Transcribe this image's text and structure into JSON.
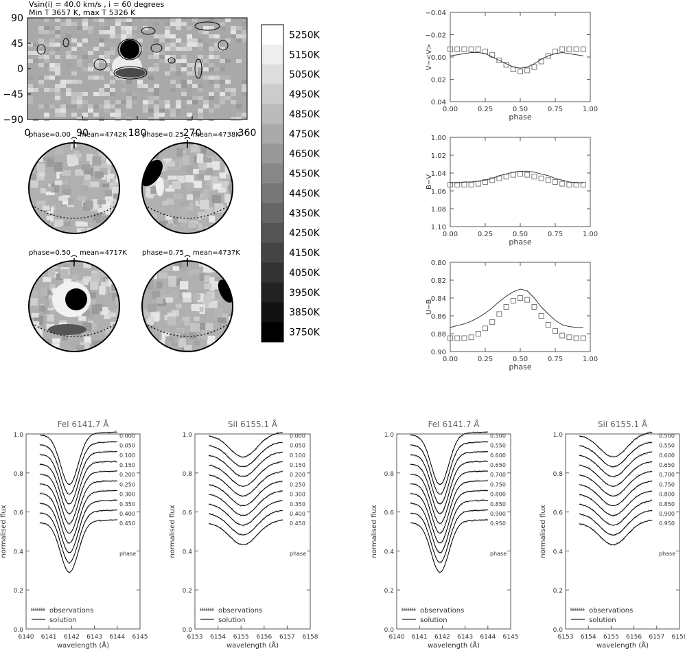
{
  "map": {
    "title_line1": "Vsin(i) = 40.0 km/s , i = 60 degrees",
    "title_line2": "Min T 3657 K, max T 5326 K",
    "y_ticks": [
      "90",
      "45",
      "0",
      "−45",
      "−90"
    ],
    "x_ticks": [
      "0",
      "90",
      "180",
      "270",
      "360"
    ]
  },
  "colorbar": {
    "labels": [
      "5250K",
      "5150K",
      "5050K",
      "4950K",
      "4850K",
      "4750K",
      "4650K",
      "4550K",
      "4450K",
      "4350K",
      "4250K",
      "4150K",
      "4050K",
      "3950K",
      "3850K",
      "3750K"
    ]
  },
  "spheres": [
    {
      "label": "phase=0.00",
      "mean": "mean=4742K"
    },
    {
      "label": "phase=0.25",
      "mean": "mean=4738K"
    },
    {
      "label": "phase=0.50",
      "mean": "mean=4717K"
    },
    {
      "label": "phase=0.75",
      "mean": "mean=4737K"
    }
  ],
  "chart_data": [
    {
      "type": "scatter",
      "ylabel": "V−<V>",
      "xlabel": "phase",
      "ylim": [
        0.04,
        -0.04
      ],
      "xlim": [
        0,
        1
      ],
      "x_ticks": [
        "0.00",
        "0.25",
        "0.50",
        "0.75",
        "1.00"
      ],
      "y_ticks": [
        "−0.04",
        "−0.02",
        "0.00",
        "0.02",
        "0.04"
      ],
      "y_tick_values": [
        -0.04,
        -0.02,
        0.0,
        0.02,
        0.04
      ],
      "observations": {
        "x": [
          0.0,
          0.05,
          0.1,
          0.15,
          0.2,
          0.25,
          0.3,
          0.35,
          0.4,
          0.45,
          0.5,
          0.55,
          0.6,
          0.65,
          0.7,
          0.75,
          0.8,
          0.85,
          0.9,
          0.95
        ],
        "y": [
          -0.007,
          -0.007,
          -0.007,
          -0.007,
          -0.007,
          -0.005,
          -0.002,
          0.003,
          0.007,
          0.011,
          0.013,
          0.012,
          0.009,
          0.004,
          -0.001,
          -0.005,
          -0.007,
          -0.007,
          -0.007,
          -0.007
        ]
      },
      "solution": {
        "x": [
          0.0,
          0.05,
          0.1,
          0.15,
          0.2,
          0.25,
          0.3,
          0.35,
          0.4,
          0.45,
          0.5,
          0.55,
          0.6,
          0.65,
          0.7,
          0.75,
          0.8,
          0.85,
          0.9,
          0.95
        ],
        "y": [
          -0.001,
          -0.002,
          -0.003,
          -0.004,
          -0.004,
          -0.003,
          0.0,
          0.003,
          0.006,
          0.009,
          0.01,
          0.009,
          0.006,
          0.002,
          -0.001,
          -0.003,
          -0.004,
          -0.003,
          -0.002,
          -0.001
        ]
      }
    },
    {
      "type": "scatter",
      "ylabel": "B−V",
      "xlabel": "phase",
      "ylim": [
        1.1,
        1.0
      ],
      "xlim": [
        0,
        1
      ],
      "x_ticks": [
        "0.00",
        "0.25",
        "0.50",
        "0.75",
        "1.00"
      ],
      "y_ticks": [
        "1.00",
        "1.02",
        "1.04",
        "1.06",
        "1.08",
        "1.10"
      ],
      "y_tick_values": [
        1.0,
        1.02,
        1.04,
        1.06,
        1.08,
        1.1
      ],
      "observations": {
        "x": [
          0.0,
          0.05,
          0.1,
          0.15,
          0.2,
          0.25,
          0.3,
          0.35,
          0.4,
          0.45,
          0.5,
          0.55,
          0.6,
          0.65,
          0.7,
          0.75,
          0.8,
          0.85,
          0.9,
          0.95
        ],
        "y": [
          1.053,
          1.053,
          1.053,
          1.053,
          1.052,
          1.05,
          1.048,
          1.046,
          1.044,
          1.042,
          1.041,
          1.042,
          1.044,
          1.046,
          1.048,
          1.05,
          1.052,
          1.053,
          1.053,
          1.053
        ]
      },
      "solution": {
        "x": [
          0.0,
          0.05,
          0.1,
          0.15,
          0.2,
          0.25,
          0.3,
          0.35,
          0.4,
          0.45,
          0.5,
          0.55,
          0.6,
          0.65,
          0.7,
          0.75,
          0.8,
          0.85,
          0.9,
          0.95
        ],
        "y": [
          1.051,
          1.051,
          1.05,
          1.05,
          1.049,
          1.048,
          1.046,
          1.043,
          1.041,
          1.039,
          1.038,
          1.038,
          1.039,
          1.041,
          1.043,
          1.046,
          1.048,
          1.05,
          1.051,
          1.051
        ]
      }
    },
    {
      "type": "scatter",
      "ylabel": "U−B",
      "xlabel": "phase",
      "ylim": [
        0.9,
        0.8
      ],
      "xlim": [
        0,
        1
      ],
      "x_ticks": [
        "0.00",
        "0.25",
        "0.50",
        "0.75",
        "1.00"
      ],
      "y_ticks": [
        "0.80",
        "0.82",
        "0.84",
        "0.86",
        "0.88",
        "0.90"
      ],
      "y_tick_values": [
        0.8,
        0.82,
        0.84,
        0.86,
        0.88,
        0.9
      ],
      "observations": {
        "x": [
          0.0,
          0.05,
          0.1,
          0.15,
          0.2,
          0.25,
          0.3,
          0.35,
          0.4,
          0.45,
          0.5,
          0.55,
          0.6,
          0.65,
          0.7,
          0.75,
          0.8,
          0.85,
          0.9,
          0.95
        ],
        "y": [
          0.885,
          0.885,
          0.885,
          0.884,
          0.88,
          0.874,
          0.867,
          0.858,
          0.85,
          0.843,
          0.84,
          0.842,
          0.85,
          0.86,
          0.87,
          0.877,
          0.882,
          0.884,
          0.885,
          0.885
        ]
      },
      "solution": {
        "x": [
          0.0,
          0.05,
          0.1,
          0.15,
          0.2,
          0.25,
          0.3,
          0.35,
          0.4,
          0.45,
          0.5,
          0.55,
          0.6,
          0.65,
          0.7,
          0.75,
          0.8,
          0.85,
          0.9,
          0.95
        ],
        "y": [
          0.873,
          0.871,
          0.869,
          0.866,
          0.862,
          0.857,
          0.851,
          0.844,
          0.838,
          0.833,
          0.83,
          0.832,
          0.84,
          0.85,
          0.858,
          0.865,
          0.87,
          0.872,
          0.873,
          0.873
        ]
      }
    }
  ],
  "spectra": [
    {
      "title": "FeI 6141.7 Å",
      "center": 6141.9,
      "depth": 0.26,
      "width": 0.55,
      "xlim": [
        6140,
        6145
      ],
      "x_ticks": [
        "6140",
        "6141",
        "6142",
        "6143",
        "6144",
        "6145"
      ],
      "x_start": 6140.6,
      "x_end": 6144.0,
      "phases": [
        "0.000",
        "0.050",
        "0.100",
        "0.150",
        "0.200",
        "0.250",
        "0.300",
        "0.350",
        "0.400",
        "0.450"
      ]
    },
    {
      "title": "SiI 6155.1 Å",
      "center": 6155.1,
      "depth": 0.12,
      "width": 0.85,
      "xlim": [
        6153,
        6158
      ],
      "x_ticks": [
        "6153",
        "6154",
        "6155",
        "6156",
        "6157",
        "6158"
      ],
      "x_start": 6153.6,
      "x_end": 6156.8,
      "phases": [
        "0.000",
        "0.050",
        "0.100",
        "0.150",
        "0.200",
        "0.250",
        "0.300",
        "0.350",
        "0.400",
        "0.450"
      ]
    },
    {
      "title": "FeI 6141.7 Å",
      "center": 6141.9,
      "depth": 0.26,
      "width": 0.55,
      "xlim": [
        6140,
        6145
      ],
      "x_ticks": [
        "6140",
        "6141",
        "6142",
        "6143",
        "6144",
        "6145"
      ],
      "x_start": 6140.6,
      "x_end": 6144.0,
      "phases": [
        "0.500",
        "0.550",
        "0.600",
        "0.650",
        "0.700",
        "0.750",
        "0.800",
        "0.850",
        "0.900",
        "0.950"
      ]
    },
    {
      "title": "SiI 6155.1 Å",
      "center": 6155.1,
      "depth": 0.12,
      "width": 0.85,
      "xlim": [
        6153,
        6158
      ],
      "x_ticks": [
        "6153",
        "6154",
        "6155",
        "6156",
        "6157",
        "6158"
      ],
      "x_start": 6153.6,
      "x_end": 6156.8,
      "phases": [
        "0.500",
        "0.550",
        "0.600",
        "0.650",
        "0.700",
        "0.750",
        "0.800",
        "0.850",
        "0.900",
        "0.950"
      ]
    }
  ],
  "spectra_common": {
    "ylabel": "normalised flux",
    "xlabel": "wavelength (Å)",
    "y_ticks": [
      "0.0",
      "0.2",
      "0.4",
      "0.6",
      "0.8",
      "1.0"
    ],
    "y_tick_values": [
      0.0,
      0.2,
      0.4,
      0.6,
      0.8,
      1.0
    ],
    "phase_word": "phase",
    "legend_obs": "observations",
    "legend_sol": "solution",
    "offset_step": 0.05
  }
}
